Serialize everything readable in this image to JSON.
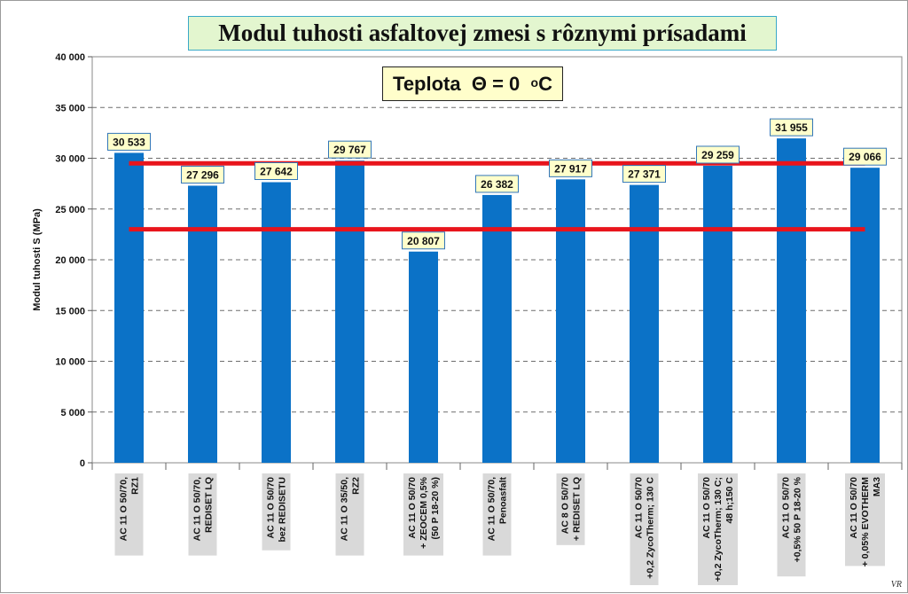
{
  "chart_data": {
    "type": "bar",
    "title": "Modul tuhosti asfaltovej zmesi s rôznymi prísadami",
    "annotation": {
      "prefix": "Teplota",
      "symbol": "Θ",
      "relation": "= 0",
      "unit_sup": "o",
      "unit": "C"
    },
    "ylabel": "Modul tuhosti S  (MPa)",
    "xlabel": "",
    "ylim": [
      0,
      40000
    ],
    "ytick_step": 5000,
    "ytick_labels": [
      "0",
      "5 000",
      "10 000",
      "15 000",
      "20 000",
      "25 000",
      "30 000",
      "35 000",
      "40 000"
    ],
    "grid": true,
    "bar_color": "#0b72c7",
    "reference_line_color": "#e8141c",
    "reference_lines": [
      29500,
      23000
    ],
    "categories": [
      [
        "AC 11 O 50/70,",
        "RZ1"
      ],
      [
        "AC 11 O 50/70,",
        "REDISET LQ"
      ],
      [
        "AC 11 O 50/70",
        "bez REDISETU"
      ],
      [
        "AC 11 O 35/50,",
        "RZ2"
      ],
      [
        "AC 11 O 50/70",
        "+ ZEOCEM 0,5%",
        "(50 P 18-20 %)"
      ],
      [
        "AC 11 O 50/70,",
        "Penoasfalt"
      ],
      [
        "AC 8 O 50/70",
        "+ REDISET LQ"
      ],
      [
        "AC 11 O 50/70",
        "+0,2 ZycoTherm; 130 C"
      ],
      [
        "AC 11 O 50/70",
        "+0,2 ZycoTherm; 130 C;",
        "48 h;150 C"
      ],
      [
        "AC 11 O 50/70",
        "+0,5% 50 P 18-20 %"
      ],
      [
        "AC 11 O 50/70",
        "+ 0,05% EVOTHERM",
        "MA3"
      ]
    ],
    "values": [
      30533,
      27296,
      27642,
      29767,
      20807,
      26382,
      27917,
      27371,
      29259,
      31955,
      29066
    ],
    "data_labels": [
      "30 533",
      "27 296",
      "27 642",
      "29 767",
      "20 807",
      "26 382",
      "27 917",
      "27 371",
      "29 259",
      "31 955",
      "29 066"
    ]
  },
  "signature_text": "VR"
}
